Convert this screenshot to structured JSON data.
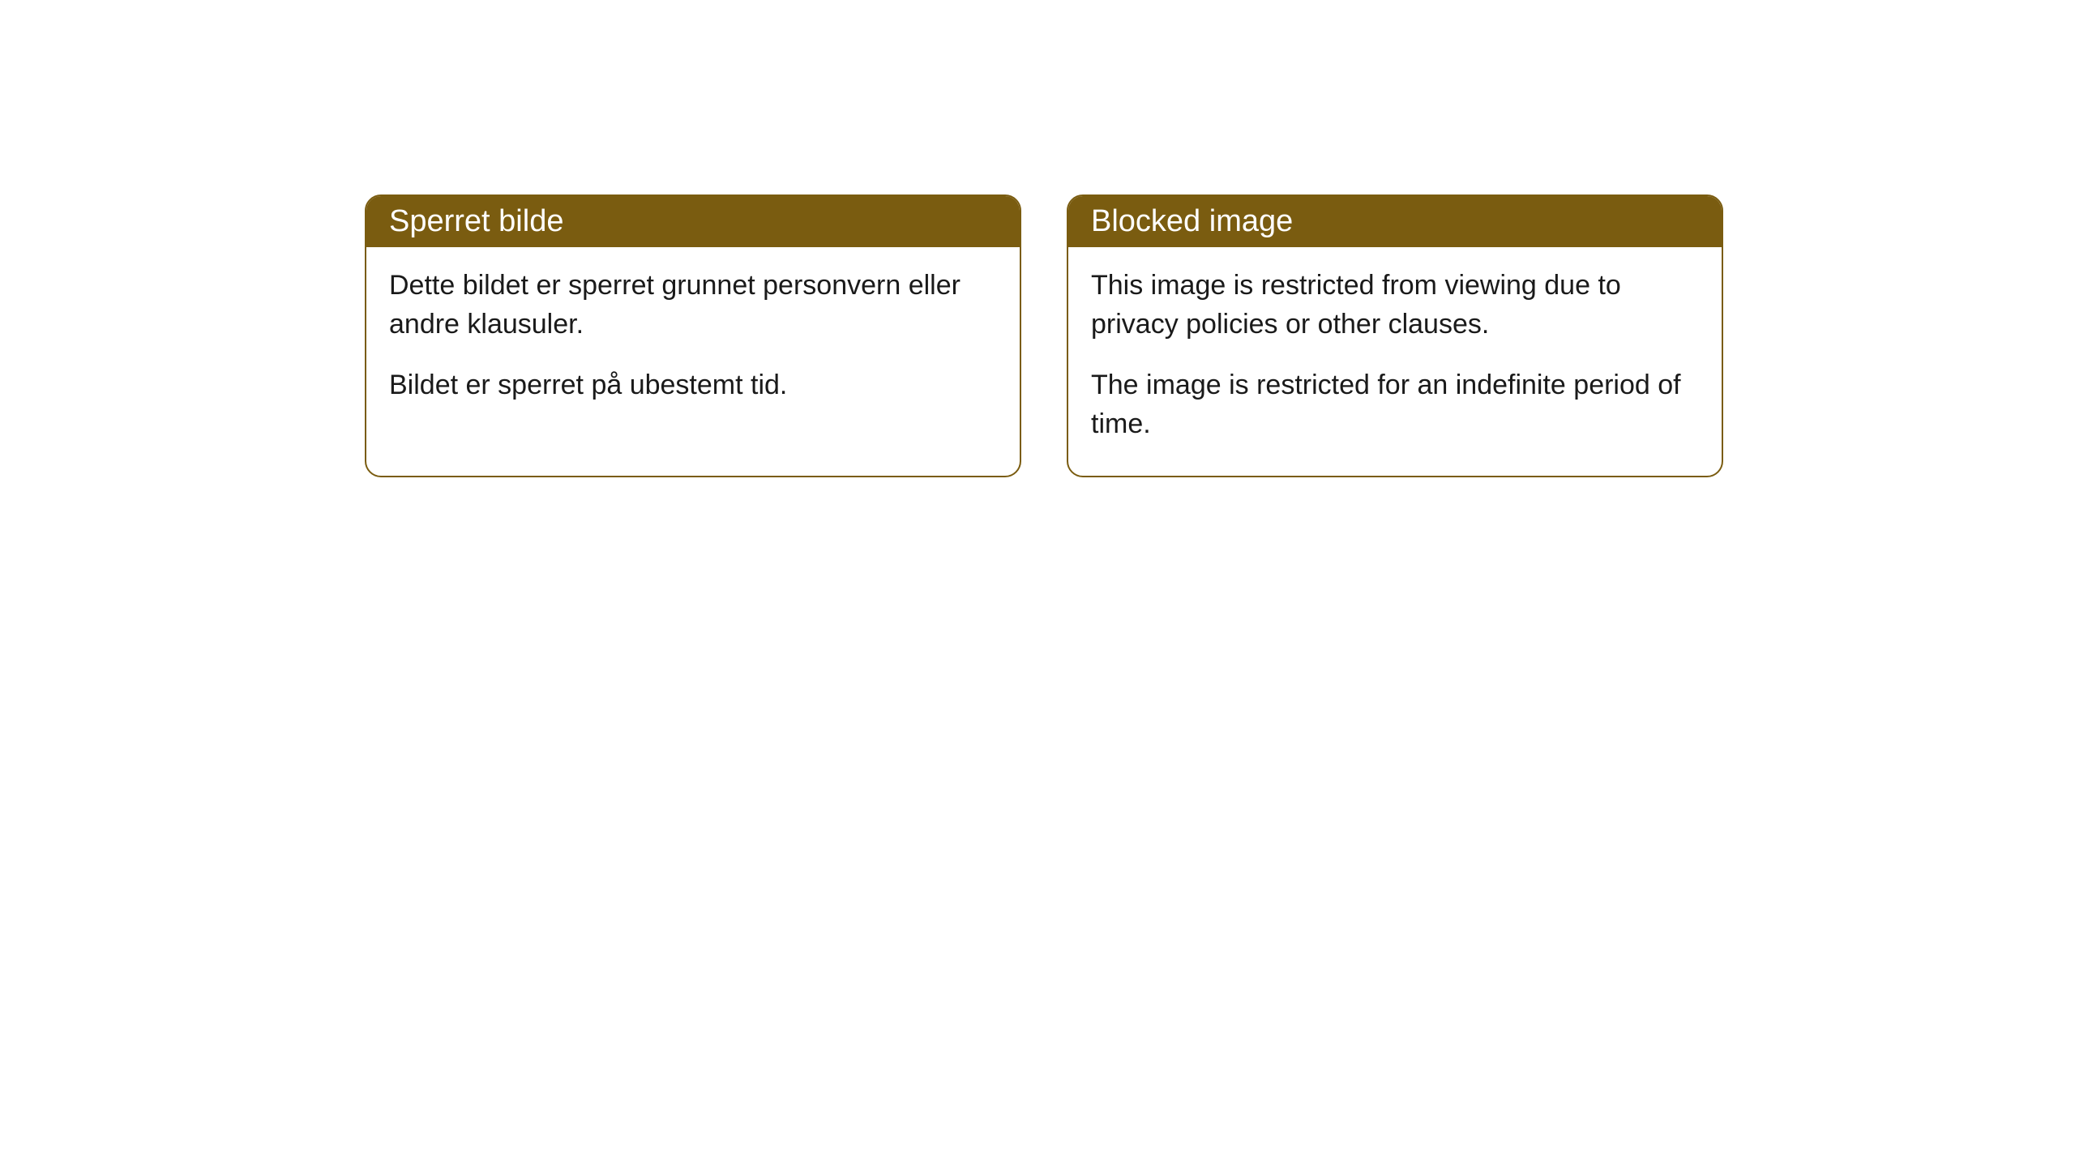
{
  "cards": [
    {
      "title": "Sperret bilde",
      "paragraph1": "Dette bildet er sperret grunnet personvern eller andre klausuler.",
      "paragraph2": "Bildet er sperret på ubestemt tid."
    },
    {
      "title": "Blocked image",
      "paragraph1": "This image is restricted from viewing due to privacy policies or other clauses.",
      "paragraph2": "The image is restricted for an indefinite period of time."
    }
  ],
  "styling": {
    "header_background": "#7a5c10",
    "header_text_color": "#ffffff",
    "card_border_color": "#7a5c10",
    "card_background": "#ffffff",
    "body_text_color": "#1a1a1a",
    "page_background": "#ffffff",
    "border_radius": 20,
    "header_fontsize": 38,
    "body_fontsize": 34
  }
}
